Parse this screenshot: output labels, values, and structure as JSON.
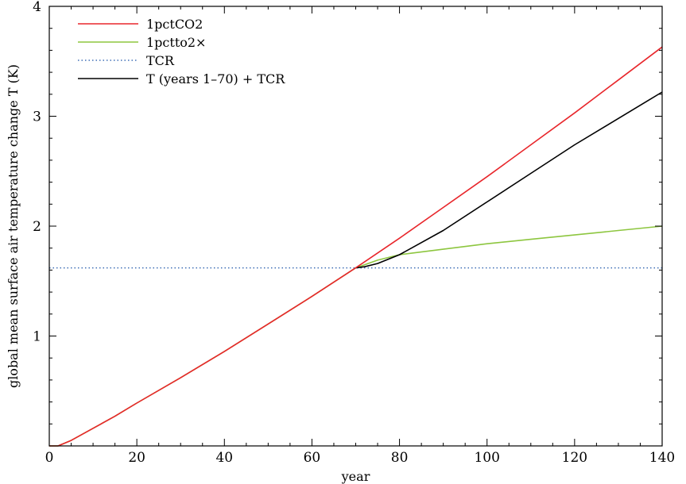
{
  "chart_data": {
    "type": "line",
    "xlabel": "year",
    "ylabel": "global mean surface air temperature change T (K)",
    "xlim": [
      0,
      140
    ],
    "ylim": [
      0,
      4
    ],
    "xticks": [
      0,
      20,
      40,
      60,
      80,
      100,
      120,
      140
    ],
    "yticks": [
      1,
      2,
      3,
      4
    ],
    "grid": false,
    "legend_position": "top-left",
    "series": [
      {
        "name": "1pctCO2",
        "color": "#e8262b",
        "style": "solid",
        "x": [
          0,
          2,
          5,
          10,
          15,
          20,
          30,
          40,
          50,
          60,
          70,
          80,
          90,
          100,
          110,
          120,
          130,
          140
        ],
        "y": [
          0.0,
          0.0,
          0.05,
          0.16,
          0.27,
          0.39,
          0.62,
          0.86,
          1.11,
          1.36,
          1.62,
          1.89,
          2.17,
          2.45,
          2.74,
          3.03,
          3.33,
          3.63
        ]
      },
      {
        "name": "1pctto2×",
        "color": "#8dc63f",
        "style": "solid",
        "x": [
          0,
          2,
          5,
          10,
          15,
          20,
          30,
          40,
          50,
          60,
          70,
          75,
          80,
          90,
          100,
          110,
          120,
          130,
          140
        ],
        "y": [
          0.0,
          0.0,
          0.05,
          0.16,
          0.27,
          0.39,
          0.62,
          0.86,
          1.11,
          1.36,
          1.62,
          1.69,
          1.74,
          1.79,
          1.84,
          1.88,
          1.92,
          1.96,
          2.0
        ]
      },
      {
        "name": "TCR",
        "color": "#3f6fb6",
        "style": "dotted",
        "x": [
          0,
          140
        ],
        "y": [
          1.62,
          1.62
        ]
      },
      {
        "name": "T (years 1–70) + TCR",
        "color": "#000000",
        "style": "solid",
        "x": [
          70,
          72,
          75,
          80,
          90,
          100,
          110,
          120,
          130,
          140
        ],
        "y": [
          1.62,
          1.63,
          1.66,
          1.74,
          1.96,
          2.22,
          2.48,
          2.74,
          2.98,
          3.22
        ]
      }
    ]
  }
}
